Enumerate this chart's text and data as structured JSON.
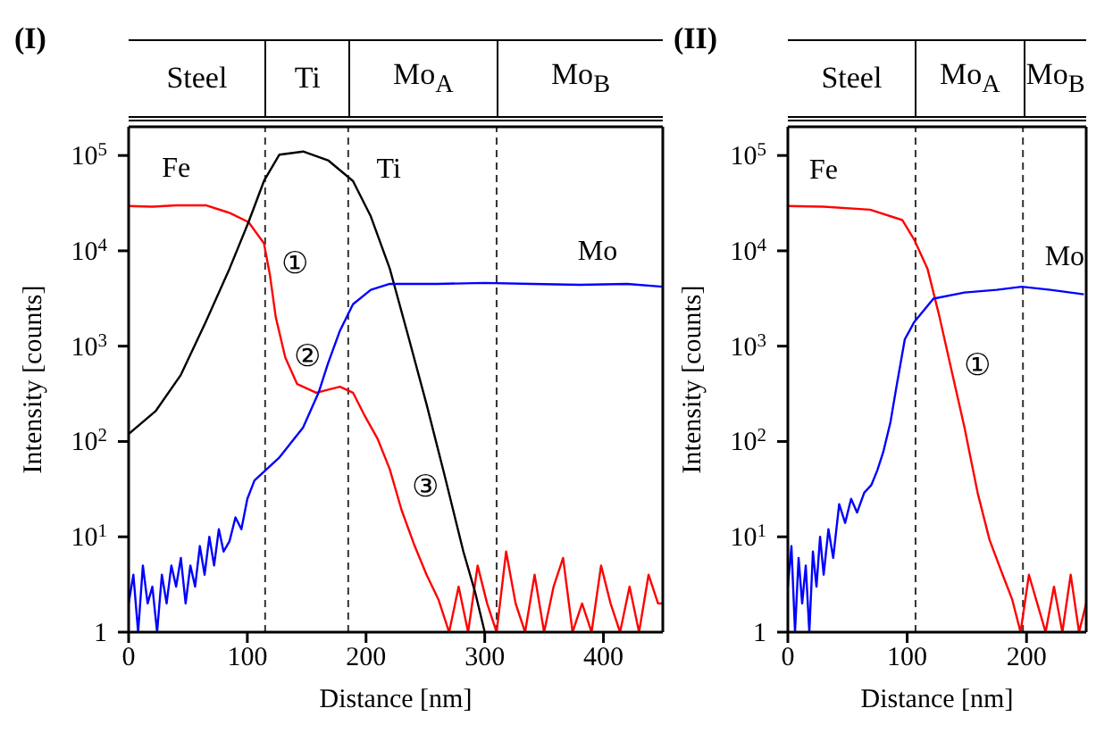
{
  "chart_data": [
    {
      "type": "line",
      "title": "(I)",
      "xlabel": "Distance [nm]",
      "ylabel": "Intensity [counts]",
      "log": "y",
      "marker": "none",
      "line_style": "solid",
      "xlim": [
        0,
        450
      ],
      "xticks": [
        0,
        100,
        200,
        300,
        400
      ],
      "ylim": [
        1,
        200000
      ],
      "yticks": [
        1,
        {
          "value": 10,
          "label": "10$^{1}$"
        },
        {
          "value": 100,
          "label": "10$^{2}$"
        },
        {
          "value": 1000,
          "label": "10$^{3}$"
        },
        {
          "value": 10000,
          "label": "10$^{4}$"
        },
        {
          "value": 100000,
          "label": "10$^{5}$"
        }
      ],
      "ref_lines": [
        {
          "axis": "x",
          "value": 115,
          "line_style": "dashed"
        },
        {
          "axis": "x",
          "value": 185,
          "line_style": "dashed"
        },
        {
          "axis": "x",
          "value": 310,
          "line_style": "dashed"
        }
      ],
      "annotations": [
        "Steel",
        "Ti",
        "Mo$_{A}$",
        "Mo$_{B}$",
        "①",
        "②",
        "③"
      ],
      "series": [
        {
          "name": "Fe",
          "color": "#ff0000",
          "x": [
            0,
            20,
            40,
            65,
            85,
            101,
            114,
            119,
            124,
            132,
            142,
            158,
            178,
            189,
            199,
            210,
            220,
            230,
            241,
            251,
            261,
            270,
            278,
            286,
            294,
            302,
            310,
            318,
            326,
            334,
            342,
            350,
            358,
            366,
            374,
            382,
            390,
            398,
            406,
            414,
            422,
            430,
            438,
            446,
            450
          ],
          "values": [
            29500,
            29000,
            30000,
            30000,
            25000,
            20000,
            12000,
            5600,
            2000,
            760,
            400,
            325,
            375,
            325,
            185,
            105,
            51,
            19,
            8,
            4,
            2.2,
            1,
            3,
            1,
            5,
            2,
            1,
            7,
            2,
            1,
            4,
            1,
            3,
            6,
            1,
            2,
            1,
            5,
            2,
            1,
            3,
            1,
            4,
            2,
            2
          ]
        },
        {
          "name": "Ti",
          "color": "#000000",
          "x": [
            0,
            23,
            44,
            65,
            85,
            101,
            114,
            127,
            147,
            168,
            189,
            204,
            220,
            235,
            251,
            266,
            282,
            292,
            300
          ],
          "values": [
            120,
            210,
            500,
            1800,
            6500,
            20000,
            54000,
            102000,
            110000,
            89000,
            54000,
            23000,
            6500,
            1350,
            245,
            45,
            7,
            2.6,
            1
          ]
        },
        {
          "name": "Mo",
          "color": "#0000ff",
          "x": [
            0,
            4,
            8,
            12,
            16,
            20,
            24,
            28,
            32,
            36,
            40,
            44,
            48,
            52,
            56,
            60,
            64,
            68,
            72,
            76,
            80,
            85,
            90,
            95,
            100,
            106,
            127,
            147,
            160,
            168,
            178,
            189,
            204,
            220,
            260,
            300,
            340,
            380,
            420,
            450
          ],
          "values": [
            2,
            4,
            1,
            5,
            2,
            3,
            1,
            4,
            2,
            5,
            3,
            6,
            2,
            5,
            3,
            8,
            4,
            10,
            5,
            12,
            7,
            9,
            16,
            12,
            25,
            39,
            68,
            140,
            325,
            660,
            1450,
            2750,
            3900,
            4500,
            4500,
            4600,
            4500,
            4400,
            4500,
            4200
          ]
        }
      ]
    },
    {
      "type": "line",
      "title": "(II)",
      "xlabel": "Distance [nm]",
      "ylabel": "Intensity [counts]",
      "log": "y",
      "marker": "none",
      "line_style": "solid",
      "xlim": [
        0,
        250
      ],
      "xticks": [
        0,
        100,
        200
      ],
      "ylim": [
        1,
        200000
      ],
      "yticks": [
        1,
        {
          "value": 10,
          "label": "10$^{1}$"
        },
        {
          "value": 100,
          "label": "10$^{2}$"
        },
        {
          "value": 1000,
          "label": "10$^{3}$"
        },
        {
          "value": 10000,
          "label": "10$^{4}$"
        },
        {
          "value": 100000,
          "label": "10$^{5}$"
        }
      ],
      "ref_lines": [
        {
          "axis": "x",
          "value": 107,
          "line_style": "dashed"
        },
        {
          "axis": "x",
          "value": 197,
          "line_style": "dashed"
        }
      ],
      "annotations": [
        "Steel",
        "Mo$_{A}$",
        "Mo$_{B}$",
        "①"
      ],
      "series": [
        {
          "name": "Fe",
          "color": "#ff0000",
          "x": [
            0,
            30,
            69,
            96,
            106,
            117,
            127,
            138,
            148,
            159,
            169,
            180,
            188,
            195,
            202,
            209,
            216,
            223,
            230,
            237,
            244,
            250
          ],
          "values": [
            29500,
            29000,
            27000,
            21000,
            13000,
            6500,
            2050,
            500,
            140,
            29,
            9.3,
            4,
            2.2,
            1,
            4,
            2,
            1,
            3,
            1,
            4,
            1,
            2
          ]
        },
        {
          "name": "Mo",
          "color": "#0000ff",
          "x": [
            0,
            3,
            6,
            9,
            12,
            15,
            18,
            21,
            24,
            27,
            30,
            34,
            38,
            43,
            48,
            53,
            58,
            64,
            70,
            75,
            80,
            86,
            91,
            98,
            106,
            122,
            148,
            175,
            196,
            220,
            248
          ],
          "values": [
            3,
            8,
            1,
            6,
            2,
            5,
            1,
            7,
            3,
            10,
            4,
            12,
            6,
            22,
            14,
            25,
            18,
            29,
            35,
            50,
            78,
            160,
            375,
            1180,
            1800,
            3150,
            3650,
            3900,
            4200,
            3900,
            3500
          ]
        }
      ]
    }
  ]
}
